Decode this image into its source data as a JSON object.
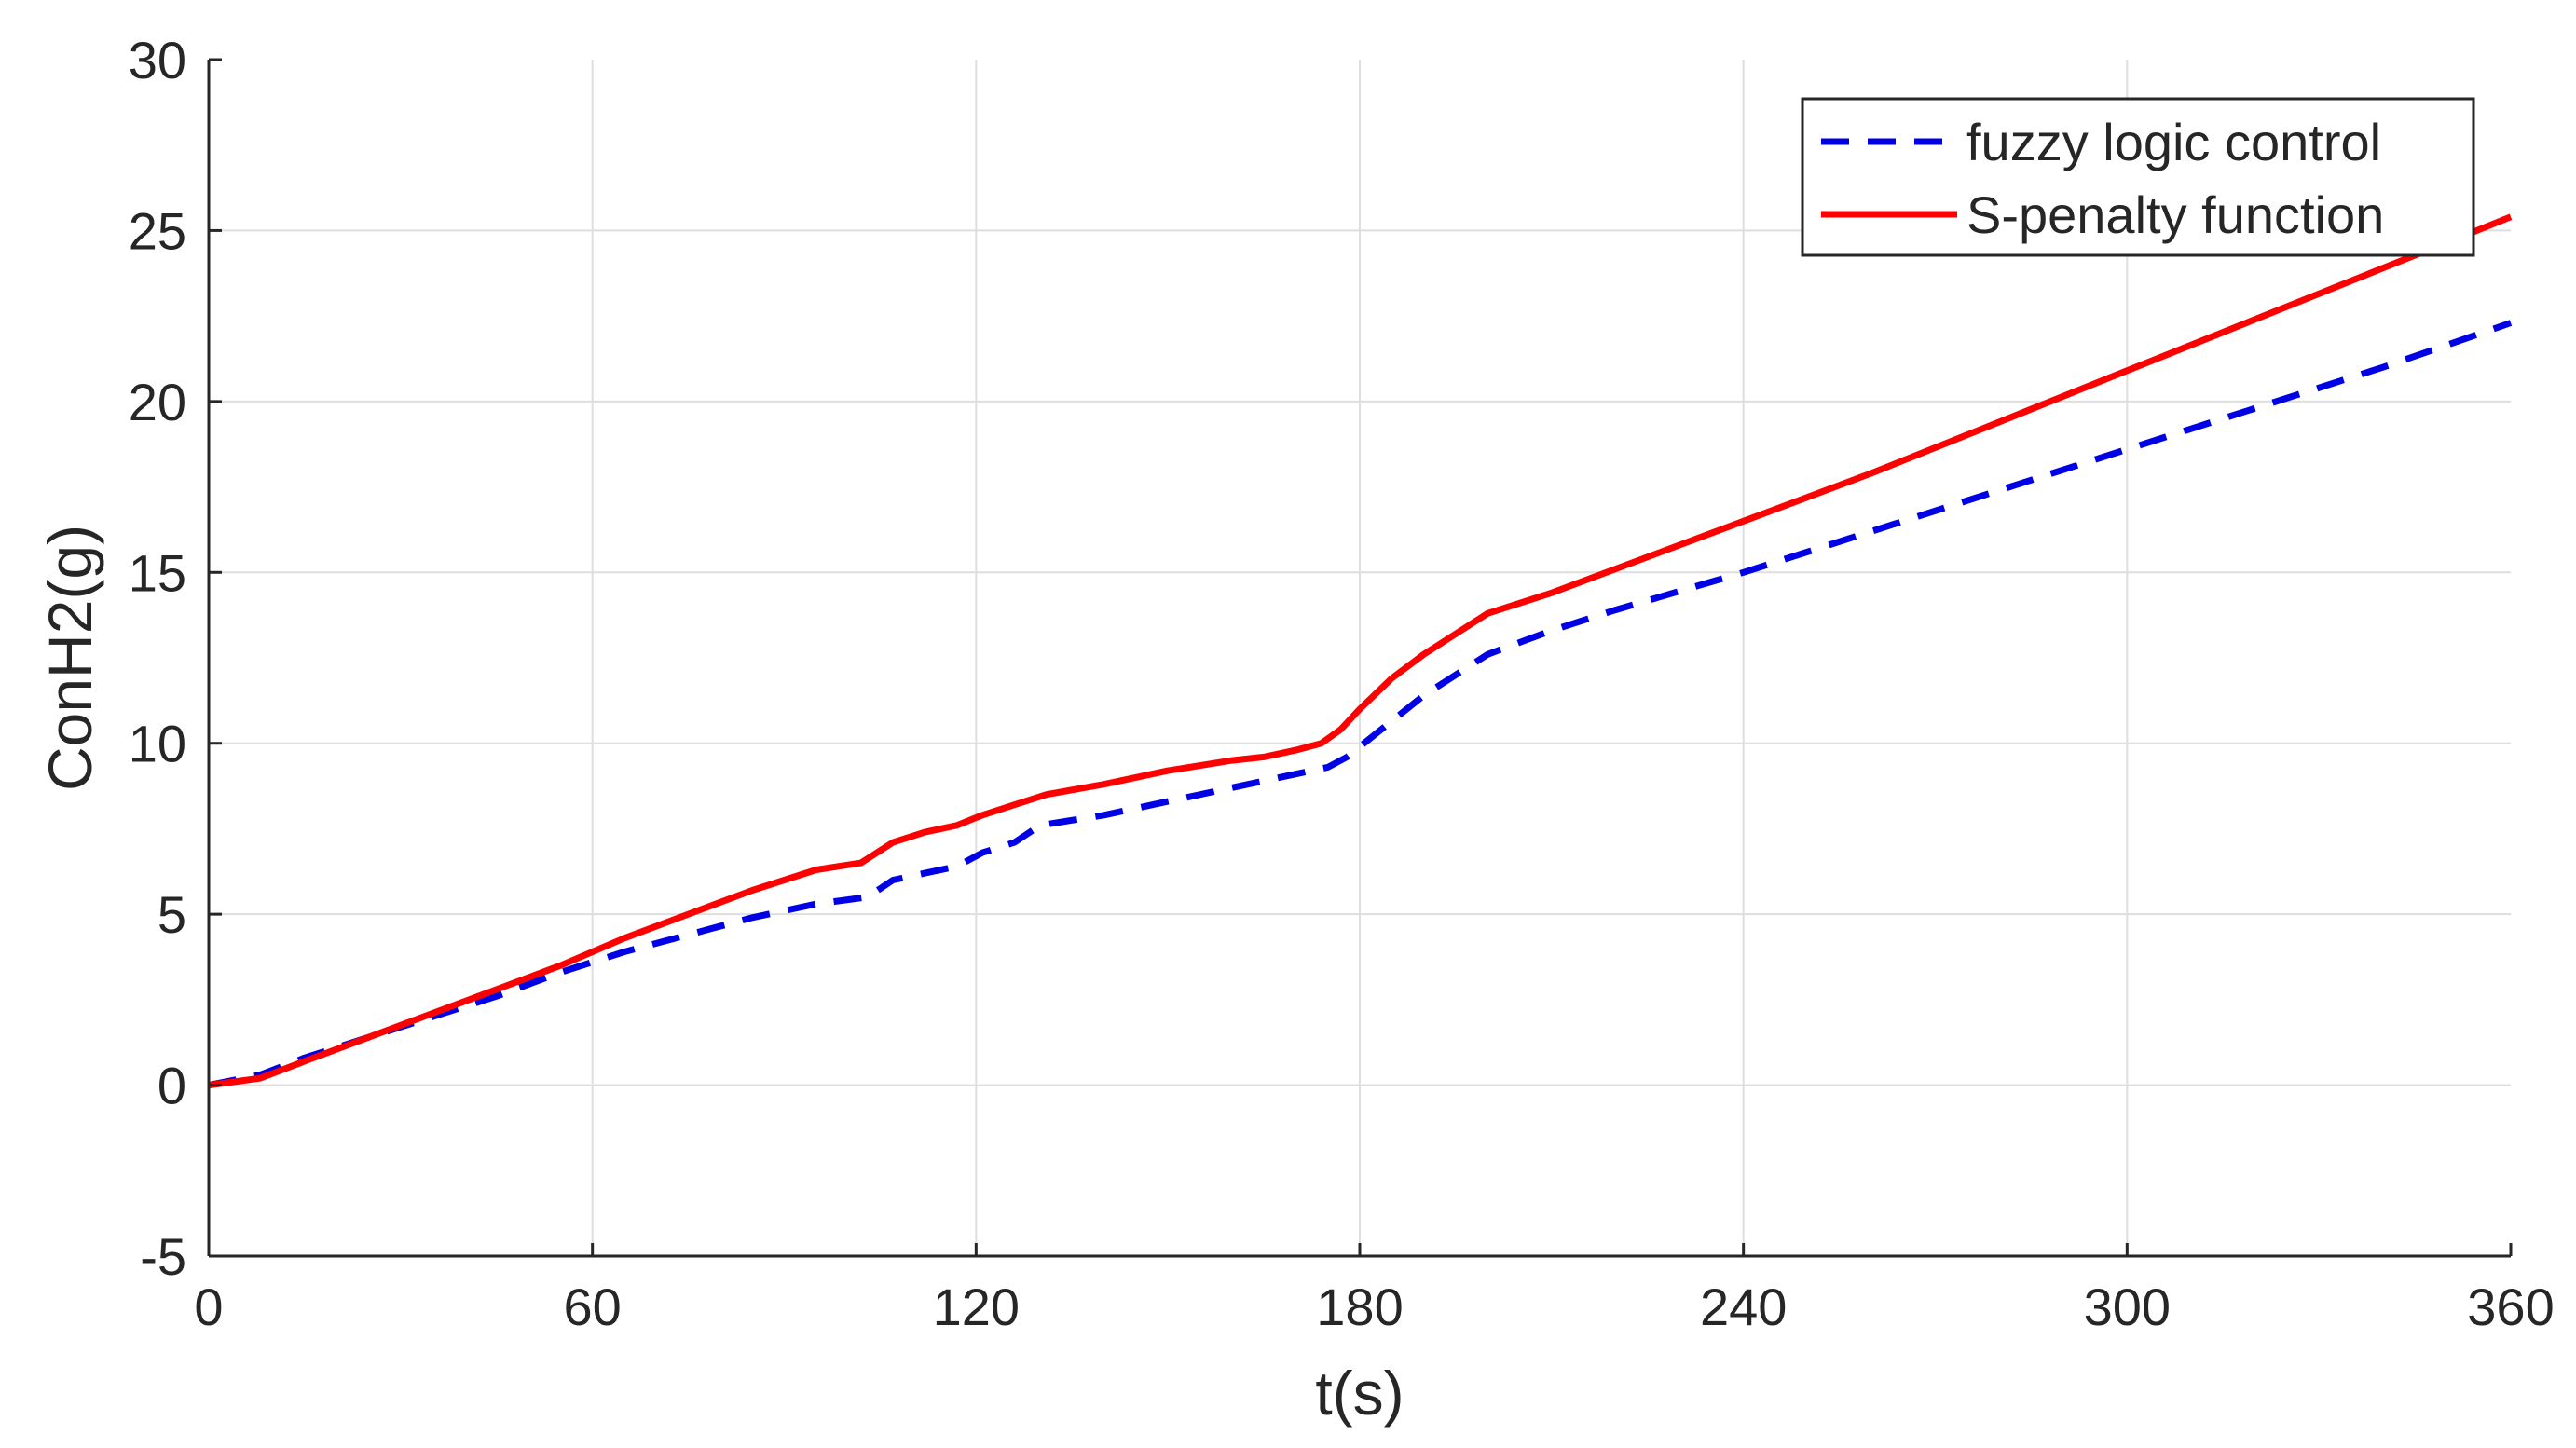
{
  "chart_data": {
    "type": "line",
    "xlabel": "t(s)",
    "ylabel": "ConH2(g)",
    "xlim": [
      0,
      360
    ],
    "ylim": [
      -5,
      30
    ],
    "xticks": [
      0,
      60,
      120,
      180,
      240,
      300,
      360
    ],
    "yticks": [
      -5,
      0,
      5,
      10,
      15,
      20,
      25,
      30
    ],
    "grid": true,
    "legend_position": "top-right",
    "series": [
      {
        "name": "fuzzy logic control",
        "color": "#0000e6",
        "style": "dashed",
        "x": [
          0,
          8,
          15,
          25,
          35,
          45,
          55,
          65,
          75,
          85,
          95,
          103,
          107,
          112,
          117,
          121,
          126,
          130,
          140,
          150,
          160,
          170,
          175,
          178,
          182,
          190,
          200,
          210,
          220,
          240,
          260,
          280,
          300,
          320,
          340,
          360
        ],
        "y": [
          0,
          0.3,
          0.8,
          1.4,
          2.0,
          2.6,
          3.3,
          3.9,
          4.4,
          4.9,
          5.3,
          5.5,
          6.0,
          6.2,
          6.4,
          6.8,
          7.1,
          7.6,
          7.9,
          8.3,
          8.7,
          9.1,
          9.3,
          9.6,
          10.2,
          11.4,
          12.6,
          13.3,
          13.9,
          15.0,
          16.2,
          17.4,
          18.6,
          19.8,
          21.0,
          22.3
        ]
      },
      {
        "name": "S-penalty function",
        "color": "#ff0000",
        "style": "solid",
        "x": [
          0,
          8,
          15,
          25,
          35,
          45,
          55,
          65,
          75,
          85,
          95,
          102,
          107,
          112,
          117,
          121,
          126,
          131,
          140,
          150,
          160,
          165,
          170,
          174,
          177,
          180,
          185,
          190,
          195,
          200,
          205,
          210,
          220,
          240,
          260,
          280,
          300,
          320,
          340,
          360
        ],
        "y": [
          0,
          0.2,
          0.7,
          1.4,
          2.1,
          2.8,
          3.5,
          4.3,
          5.0,
          5.7,
          6.3,
          6.5,
          7.1,
          7.4,
          7.6,
          7.9,
          8.2,
          8.5,
          8.8,
          9.2,
          9.5,
          9.6,
          9.8,
          10.0,
          10.4,
          11.0,
          11.9,
          12.6,
          13.2,
          13.8,
          14.1,
          14.4,
          15.1,
          16.5,
          17.9,
          19.4,
          20.9,
          22.4,
          23.9,
          25.4
        ]
      }
    ]
  }
}
